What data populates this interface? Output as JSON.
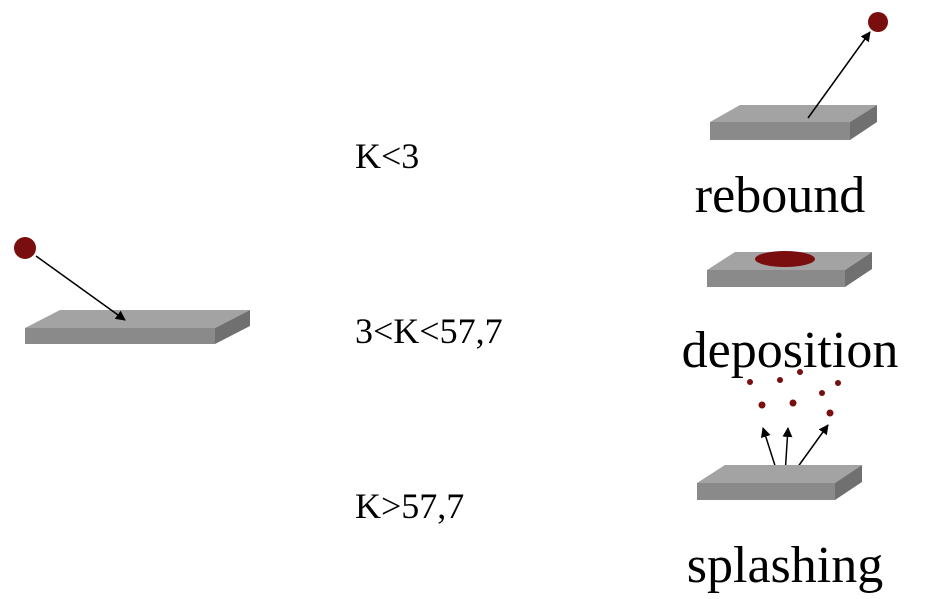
{
  "conditions": [
    "K<3",
    "3<K<57,7",
    "K>57,7"
  ],
  "outcomes": [
    "rebound",
    "deposition",
    "splashing"
  ]
}
